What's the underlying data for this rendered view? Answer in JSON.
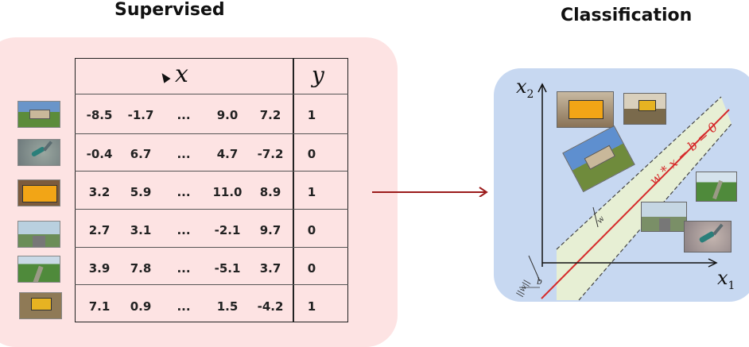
{
  "headings": {
    "left": "Supervised",
    "right": "Classification"
  },
  "table": {
    "x_header": "x",
    "y_header": "y",
    "rows": [
      {
        "image": "road-sign-photo",
        "x": [
          "-8.5",
          "-1.7",
          "...",
          "9.0",
          "7.2"
        ],
        "y": "1"
      },
      {
        "image": "hummingbird-photo",
        "x": [
          "-0.4",
          "6.7",
          "...",
          "4.7",
          "-7.2"
        ],
        "y": "0"
      },
      {
        "image": "startup-sign-photo",
        "x": [
          "3.2",
          "5.9",
          "...",
          "11.0",
          "8.9"
        ],
        "y": "1"
      },
      {
        "image": "road-landscape-photo",
        "x": [
          "2.7",
          "3.1",
          "...",
          "-2.1",
          "9.7"
        ],
        "y": "0"
      },
      {
        "image": "field-path-photo",
        "x": [
          "3.9",
          "7.8",
          "...",
          "-5.1",
          "3.7"
        ],
        "y": "0"
      },
      {
        "image": "town-sign-photo",
        "x": [
          "7.1",
          "0.9",
          "...",
          "1.5",
          "-4.2"
        ],
        "y": "1"
      }
    ]
  },
  "plot": {
    "axis_x": "x",
    "axis_x_sub": "1",
    "axis_y": "x",
    "axis_y_sub": "2",
    "boundary_label": "w * x − b = 0",
    "margin_label_w": "w",
    "bias_label_b": "b",
    "bias_label_norm": "||w||"
  },
  "colors": {
    "left_panel": "#fde3e3",
    "right_panel": "#c7d8f1",
    "margin_band": "#e7efd4",
    "boundary": "#d62b2b",
    "arrow": "#9b1b1b"
  }
}
